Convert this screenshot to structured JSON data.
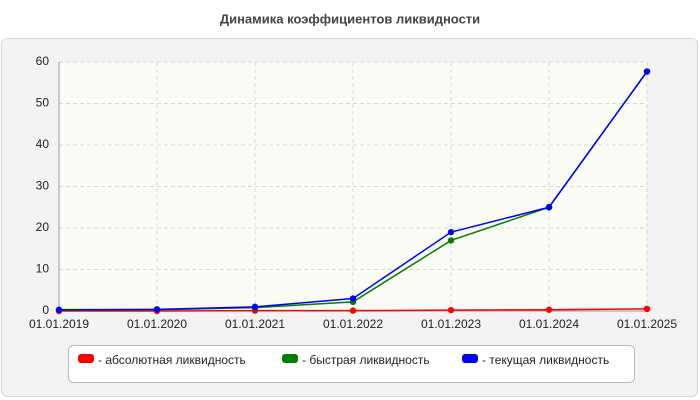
{
  "chart_data": {
    "type": "line",
    "title": "Динамика коэффициентов ликвидности",
    "categories": [
      "01.01.2019",
      "01.01.2020",
      "01.01.2021",
      "01.01.2022",
      "01.01.2023",
      "01.01.2024",
      "01.01.2025"
    ],
    "series": [
      {
        "name": "- абсолютная ликвидность",
        "color": "#ff0000",
        "values": [
          0,
          0,
          0.1,
          0.1,
          0.2,
          0.3,
          0.5
        ]
      },
      {
        "name": "- быстрая ликвидность",
        "color": "#008000",
        "values": [
          0.2,
          0.3,
          0.8,
          2.2,
          17,
          25,
          57.7
        ]
      },
      {
        "name": "- текущая ликвидность",
        "color": "#0000ff",
        "values": [
          0.3,
          0.4,
          1,
          3,
          19,
          25,
          57.7
        ]
      }
    ],
    "ylim": [
      0,
      60
    ],
    "yticks": [
      0,
      10,
      20,
      30,
      40,
      50,
      60
    ],
    "grid": true
  }
}
